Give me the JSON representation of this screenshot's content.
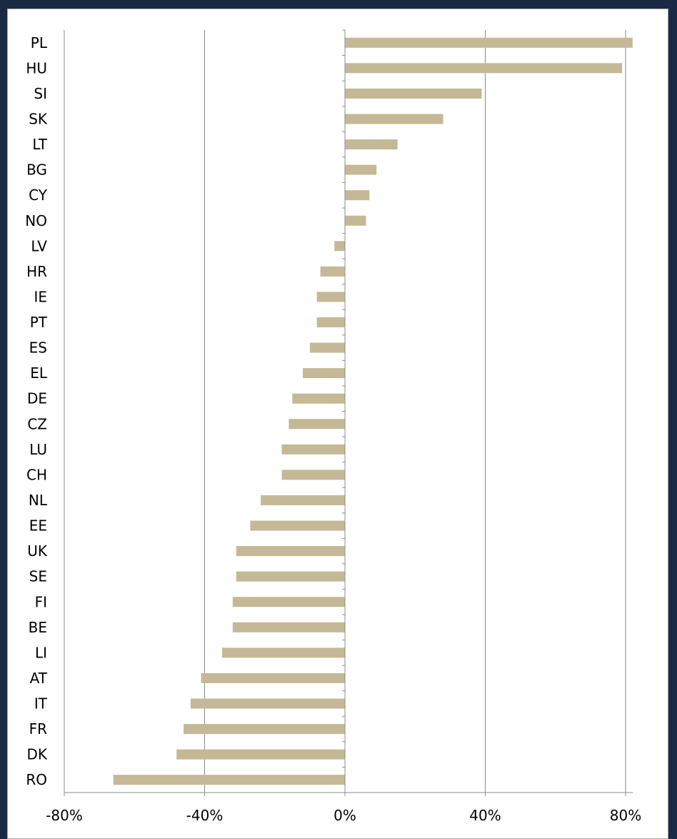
{
  "chart_data": {
    "type": "bar",
    "orientation": "horizontal",
    "title": "",
    "xlabel": "",
    "ylabel": "",
    "categories": [
      "PL",
      "HU",
      "SI",
      "SK",
      "LT",
      "BG",
      "CY",
      "NO",
      "LV",
      "HR",
      "IE",
      "PT",
      "ES",
      "EL",
      "DE",
      "CZ",
      "LU",
      "CH",
      "NL",
      "EE",
      "UK",
      "SE",
      "FI",
      "BE",
      "LI",
      "AT",
      "IT",
      "FR",
      "DK",
      "RO"
    ],
    "values": [
      82,
      79,
      39,
      28,
      15,
      9,
      7,
      6,
      -3,
      -7,
      -8,
      -8,
      -10,
      -12,
      -15,
      -16,
      -18,
      -18,
      -24,
      -27,
      -31,
      -31,
      -32,
      -32,
      -35,
      -41,
      -44,
      -46,
      -48,
      -66
    ],
    "xlim": [
      -80,
      80
    ],
    "x_ticks": [
      "-80%",
      "-40%",
      "0%",
      "40%",
      "80%"
    ],
    "tick_values": [
      -80,
      -40,
      0,
      40,
      80
    ],
    "grid": "vertical",
    "legend": "none",
    "colors": {
      "bar": "#c4b896",
      "grid": "#8c8c8c",
      "axis": "#8c8c8c",
      "frame_border": "#a9a9a9",
      "outer_background": "#1b2a44"
    }
  }
}
